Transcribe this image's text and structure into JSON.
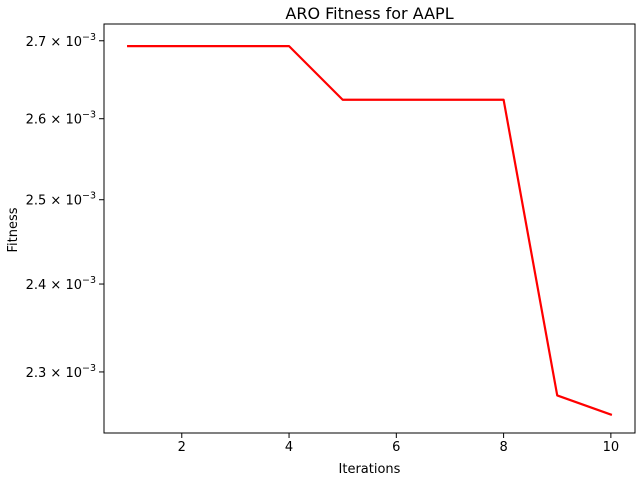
{
  "chart_data": {
    "type": "line",
    "title": "ARO Fitness for AAPL",
    "xlabel": "Iterations",
    "ylabel": "Fitness",
    "y_scale": "log",
    "grid": false,
    "xlim": [
      0.55,
      10.45
    ],
    "ylim": [
      0.002233,
      0.002722
    ],
    "x_ticks": [
      2,
      4,
      6,
      8,
      10
    ],
    "x_tick_labels": [
      "2",
      "4",
      "6",
      "8",
      "10"
    ],
    "y_ticks": [
      0.0023,
      0.0024,
      0.0025,
      0.0026,
      0.0027
    ],
    "y_tick_labels": [
      {
        "mantissa": "2.3",
        "exponent": "−3"
      },
      {
        "mantissa": "2.4",
        "exponent": "−3"
      },
      {
        "mantissa": "2.5",
        "exponent": "−3"
      },
      {
        "mantissa": "2.6",
        "exponent": "−3"
      },
      {
        "mantissa": "2.7",
        "exponent": "−3"
      }
    ],
    "series": [
      {
        "color": "#ff0000",
        "x": [
          1,
          2,
          3,
          4,
          5,
          6,
          7,
          8,
          9,
          10
        ],
        "y": [
          0.002693,
          0.002693,
          0.002693,
          0.002693,
          0.002624,
          0.002624,
          0.002624,
          0.002624,
          0.002274,
          0.002253
        ]
      }
    ]
  }
}
